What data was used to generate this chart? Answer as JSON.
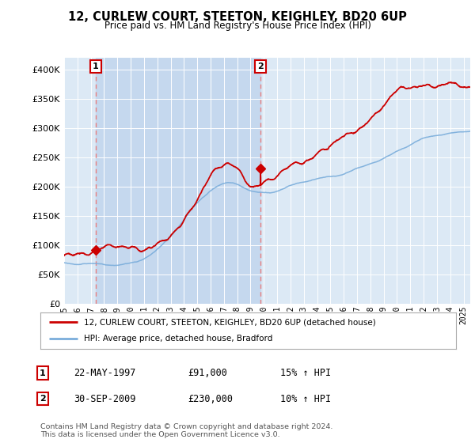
{
  "title": "12, CURLEW COURT, STEETON, KEIGHLEY, BD20 6UP",
  "subtitle": "Price paid vs. HM Land Registry's House Price Index (HPI)",
  "legend_line1": "12, CURLEW COURT, STEETON, KEIGHLEY, BD20 6UP (detached house)",
  "legend_line2": "HPI: Average price, detached house, Bradford",
  "table_rows": [
    {
      "num": "1",
      "date": "22-MAY-1997",
      "price": "£91,000",
      "hpi": "15% ↑ HPI"
    },
    {
      "num": "2",
      "date": "30-SEP-2009",
      "price": "£230,000",
      "hpi": "10% ↑ HPI"
    }
  ],
  "footnote1": "Contains HM Land Registry data © Crown copyright and database right 2024.",
  "footnote2": "This data is licensed under the Open Government Licence v3.0.",
  "sale1_year": 1997.38,
  "sale1_price": 91000,
  "sale2_year": 2009.75,
  "sale2_price": 230000,
  "hpi_color": "#7aaddb",
  "price_color": "#cc0000",
  "dashed_color": "#e88080",
  "plot_bg": "#dce9f5",
  "shade_color": "#c5d8ee",
  "ylim": [
    0,
    420000
  ],
  "xlim_start": 1995.0,
  "xlim_end": 2025.5
}
